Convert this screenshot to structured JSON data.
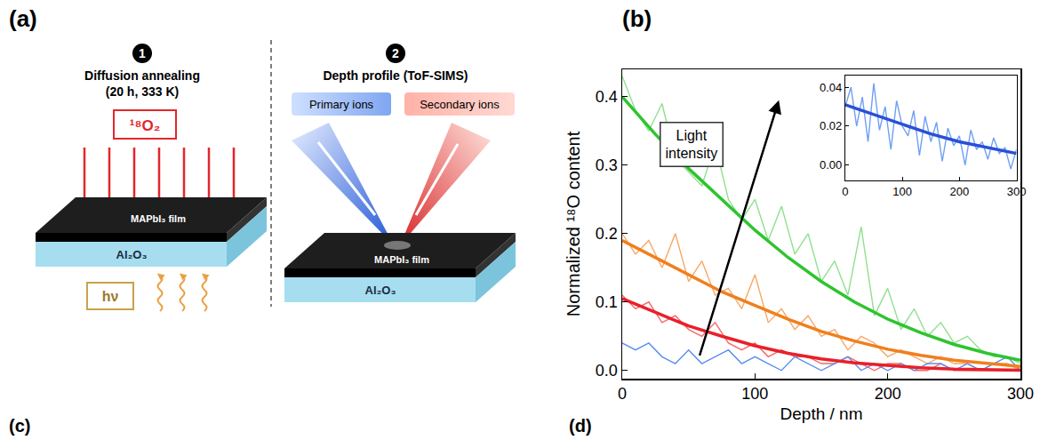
{
  "panel_labels": [
    "(a)",
    "(b)",
    "(c)",
    "(d)"
  ],
  "diagram": {
    "step1": {
      "number": "1",
      "title": "Diffusion annealing",
      "subtitle": "(20 h, 333 K)",
      "gas": "¹⁸O₂",
      "film": "MAPbI₃ film",
      "substrate": "Al₂O₃",
      "light": "hν"
    },
    "step2": {
      "number": "2",
      "title": "Depth profile (ToF-SIMS)",
      "primary": "Primary ions",
      "secondary": "Secondary ions",
      "film": "MAPbI₃ film",
      "substrate": "Al₂O₃"
    }
  },
  "chart_data": [
    {
      "type": "line",
      "x_label": "Depth / nm",
      "y_label": "Normalized ¹⁸O content",
      "xlim": [
        0,
        300
      ],
      "ylim": [
        -0.012,
        0.44
      ],
      "xticks": [
        0,
        100,
        200,
        300
      ],
      "yticks": [
        {
          "value": 0,
          "label": "0.0"
        },
        {
          "value": 0.1,
          "label": "0.1"
        },
        {
          "value": 0.2,
          "label": "0.2"
        },
        {
          "value": 0.3,
          "label": "0.3"
        },
        {
          "value": 0.4,
          "label": "0.4"
        }
      ],
      "grid": false,
      "annotations": [
        {
          "text": "Light intensity"
        }
      ],
      "series": [
        {
          "color": "#8fe08f",
          "line_style": "solid",
          "x": [
            0,
            10,
            20,
            30,
            40,
            50,
            60,
            70,
            80,
            90,
            100,
            110,
            120,
            130,
            140,
            150,
            160,
            170,
            180,
            190,
            200,
            210,
            220,
            230,
            240,
            250,
            260,
            270,
            280,
            290,
            300
          ],
          "values": [
            0.43,
            0.38,
            0.35,
            0.39,
            0.31,
            0.29,
            0.27,
            0.33,
            0.25,
            0.22,
            0.25,
            0.19,
            0.24,
            0.17,
            0.2,
            0.13,
            0.16,
            0.11,
            0.21,
            0.08,
            0.12,
            0.06,
            0.09,
            0.05,
            0.07,
            0.04,
            0.05,
            0.03,
            0.02,
            0.02,
            0.01
          ]
        },
        {
          "color": "#f7a865",
          "line_style": "solid",
          "x": [
            0,
            10,
            20,
            30,
            40,
            50,
            60,
            70,
            80,
            90,
            100,
            110,
            120,
            130,
            140,
            150,
            160,
            170,
            180,
            190,
            200,
            210,
            220,
            230,
            240,
            250,
            260,
            270,
            280,
            290,
            300
          ],
          "values": [
            0.2,
            0.17,
            0.19,
            0.15,
            0.2,
            0.13,
            0.16,
            0.11,
            0.12,
            0.09,
            0.14,
            0.07,
            0.09,
            0.06,
            0.08,
            0.05,
            0.06,
            0.03,
            0.05,
            0.04,
            0.02,
            0.03,
            0.02,
            0.01,
            0.02,
            0.01,
            0.01,
            0.0,
            0.01,
            0.01,
            0.0
          ]
        },
        {
          "color": "#f26a6a",
          "line_style": "solid",
          "x": [
            0,
            10,
            20,
            30,
            40,
            50,
            60,
            70,
            80,
            90,
            100,
            110,
            120,
            130,
            140,
            150,
            160,
            170,
            180,
            190,
            200,
            210,
            220,
            230,
            240,
            250,
            260,
            270,
            280,
            290,
            300
          ],
          "values": [
            0.11,
            0.09,
            0.1,
            0.07,
            0.08,
            0.06,
            0.05,
            0.07,
            0.04,
            0.03,
            0.04,
            0.02,
            0.03,
            0.02,
            0.02,
            0.01,
            0.01,
            0.02,
            0.01,
            0.0,
            0.01,
            0.01,
            0.0,
            0.0,
            0.01,
            0.0,
            0.0,
            0.0,
            0.0,
            0.0,
            0.0
          ]
        },
        {
          "color": "#5b8def",
          "line_style": "solid",
          "x": [
            0,
            10,
            20,
            30,
            40,
            50,
            60,
            70,
            80,
            90,
            100,
            110,
            120,
            130,
            140,
            150,
            160,
            170,
            180,
            190,
            200,
            210,
            220,
            230,
            240,
            250,
            260,
            270,
            280,
            290,
            300
          ],
          "values": [
            0.04,
            0.03,
            0.04,
            0.02,
            0.01,
            0.03,
            0.01,
            0.02,
            0.03,
            0.01,
            0.02,
            0.01,
            0.0,
            0.02,
            0.01,
            0.0,
            0.01,
            0.02,
            0.0,
            0.01,
            0.0,
            0.01,
            0.0,
            0.01,
            0.01,
            0.0,
            0.01,
            0.0,
            0.01,
            0.02,
            0.0
          ]
        },
        {
          "color": "#2fc42f",
          "line_style": "bold",
          "x": [
            0,
            25,
            50,
            75,
            100,
            125,
            150,
            175,
            200,
            225,
            250,
            275,
            300
          ],
          "values": [
            0.4,
            0.345,
            0.295,
            0.25,
            0.205,
            0.165,
            0.13,
            0.1,
            0.075,
            0.055,
            0.038,
            0.025,
            0.015
          ]
        },
        {
          "color": "#f07f1e",
          "line_style": "bold",
          "x": [
            0,
            25,
            50,
            75,
            100,
            125,
            150,
            175,
            200,
            225,
            250,
            275,
            300
          ],
          "values": [
            0.19,
            0.165,
            0.14,
            0.115,
            0.095,
            0.075,
            0.057,
            0.043,
            0.031,
            0.022,
            0.015,
            0.01,
            0.006
          ]
        },
        {
          "color": "#e8202a",
          "line_style": "bold",
          "x": [
            0,
            25,
            50,
            75,
            100,
            125,
            150,
            175,
            200,
            225,
            250,
            275,
            300
          ],
          "values": [
            0.105,
            0.085,
            0.065,
            0.05,
            0.036,
            0.025,
            0.017,
            0.011,
            0.007,
            0.004,
            0.002,
            0.001,
            0.0005
          ]
        }
      ]
    },
    {
      "type": "line",
      "xlim": [
        0,
        300
      ],
      "ylim": [
        -0.008,
        0.046
      ],
      "xticks": [
        0,
        100,
        200,
        300
      ],
      "yticks": [
        {
          "value": 0,
          "label": "0.00"
        },
        {
          "value": 0.02,
          "label": "0.02"
        },
        {
          "value": 0.04,
          "label": "0.04"
        }
      ],
      "grid": false,
      "series": [
        {
          "color": "#6fa0f2",
          "line_style": "solid",
          "x": [
            0,
            10,
            20,
            30,
            40,
            50,
            60,
            70,
            80,
            90,
            100,
            110,
            120,
            130,
            140,
            150,
            160,
            170,
            180,
            190,
            200,
            210,
            220,
            230,
            240,
            250,
            260,
            270,
            280,
            290,
            300
          ],
          "values": [
            0.03,
            0.04,
            0.02,
            0.035,
            0.012,
            0.042,
            0.018,
            0.03,
            0.008,
            0.033,
            0.02,
            0.015,
            0.028,
            0.005,
            0.025,
            0.012,
            0.022,
            0.002,
            0.019,
            0.01,
            0.015,
            0.0,
            0.018,
            0.008,
            0.012,
            0.003,
            0.014,
            0.006,
            0.009,
            -0.002,
            0.008
          ]
        },
        {
          "color": "#2a4fd8",
          "line_style": "bold",
          "x": [
            0,
            50,
            100,
            150,
            200,
            250,
            300
          ],
          "values": [
            0.031,
            0.026,
            0.021,
            0.016,
            0.012,
            0.009,
            0.006
          ]
        }
      ]
    }
  ]
}
